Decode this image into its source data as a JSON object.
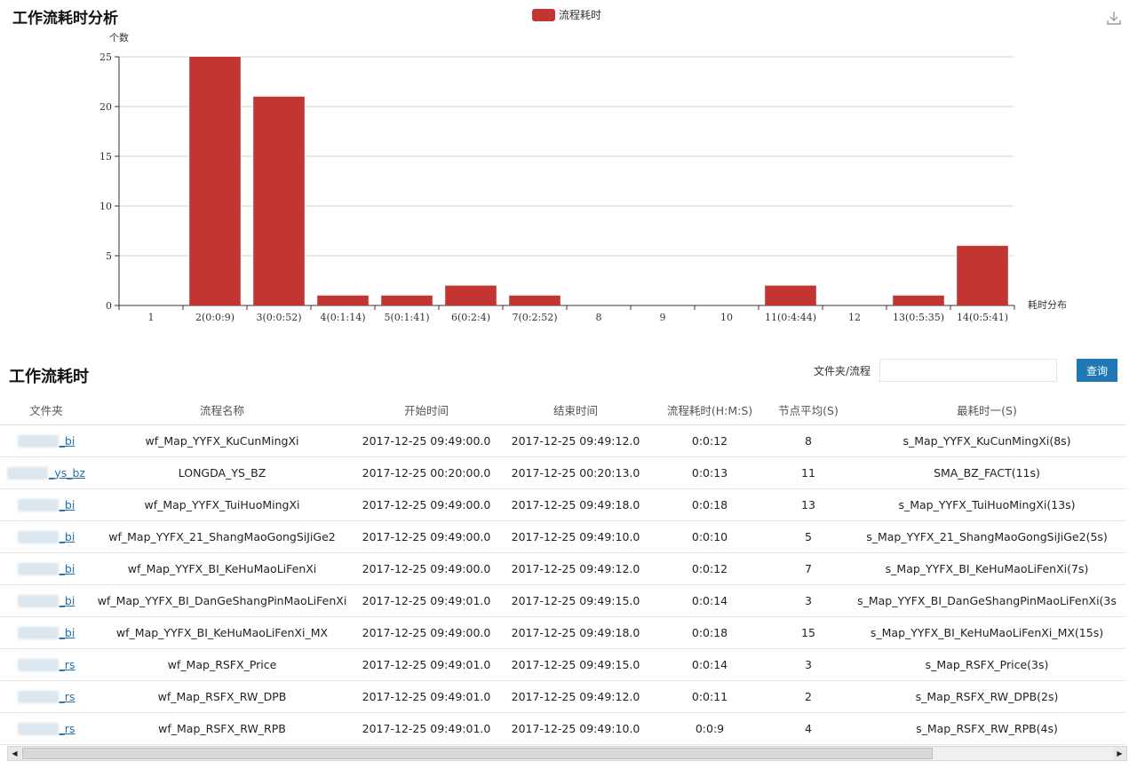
{
  "chart_section": {
    "title": "工作流耗时分析"
  },
  "download_icon": "download-icon",
  "chart_data": {
    "type": "bar",
    "categories": [
      "1",
      "2(0:0:9)",
      "3(0:0:52)",
      "4(0:1:14)",
      "5(0:1:41)",
      "6(0:2:4)",
      "7(0:2:52)",
      "8",
      "9",
      "10",
      "11(0:4:44)",
      "12",
      "13(0:5:35)",
      "14(0:5:41)"
    ],
    "series": [
      {
        "name": "流程耗时",
        "values": [
          0,
          25,
          21,
          1,
          1,
          2,
          1,
          0,
          0,
          0,
          2,
          0,
          1,
          6
        ]
      }
    ],
    "ylabel": "个数",
    "xlabel": "耗时分布",
    "ylim": [
      0,
      25
    ],
    "yticks": [
      0,
      5,
      10,
      15,
      20,
      25
    ],
    "grid": true,
    "legend_position": "top-center",
    "bar_color": "#c23531"
  },
  "table_section": {
    "title": "工作流耗时",
    "search_label": "文件夹/流程",
    "search_value": "",
    "search_button": "查询"
  },
  "table": {
    "columns": [
      "文件夹",
      "流程名称",
      "开始时间",
      "结束时间",
      "流程耗时(H:M:S)",
      "节点平均(S)",
      "最耗时一(S)"
    ],
    "rows": [
      [
        "_bi",
        "wf_Map_YYFX_KuCunMingXi",
        "2017-12-25 09:49:00.0",
        "2017-12-25 09:49:12.0",
        "0:0:12",
        "8",
        "s_Map_YYFX_KuCunMingXi(8s)"
      ],
      [
        "_ys_bz",
        "LONGDA_YS_BZ",
        "2017-12-25 00:20:00.0",
        "2017-12-25 00:20:13.0",
        "0:0:13",
        "11",
        "SMA_BZ_FACT(11s)"
      ],
      [
        "_bi",
        "wf_Map_YYFX_TuiHuoMingXi",
        "2017-12-25 09:49:00.0",
        "2017-12-25 09:49:18.0",
        "0:0:18",
        "13",
        "s_Map_YYFX_TuiHuoMingXi(13s)"
      ],
      [
        "_bi",
        "wf_Map_YYFX_21_ShangMaoGongSiJiGe2",
        "2017-12-25 09:49:00.0",
        "2017-12-25 09:49:10.0",
        "0:0:10",
        "5",
        "s_Map_YYFX_21_ShangMaoGongSiJiGe2(5s)"
      ],
      [
        "_bi",
        "wf_Map_YYFX_BI_KeHuMaoLiFenXi",
        "2017-12-25 09:49:00.0",
        "2017-12-25 09:49:12.0",
        "0:0:12",
        "7",
        "s_Map_YYFX_BI_KeHuMaoLiFenXi(7s)"
      ],
      [
        "_bi",
        "wf_Map_YYFX_BI_DanGeShangPinMaoLiFenXi",
        "2017-12-25 09:49:01.0",
        "2017-12-25 09:49:15.0",
        "0:0:14",
        "3",
        "s_Map_YYFX_BI_DanGeShangPinMaoLiFenXi(3s"
      ],
      [
        "_bi",
        "wf_Map_YYFX_BI_KeHuMaoLiFenXi_MX",
        "2017-12-25 09:49:00.0",
        "2017-12-25 09:49:18.0",
        "0:0:18",
        "15",
        "s_Map_YYFX_BI_KeHuMaoLiFenXi_MX(15s)"
      ],
      [
        "_rs",
        "wf_Map_RSFX_Price",
        "2017-12-25 09:49:01.0",
        "2017-12-25 09:49:15.0",
        "0:0:14",
        "3",
        "s_Map_RSFX_Price(3s)"
      ],
      [
        "_rs",
        "wf_Map_RSFX_RW_DPB",
        "2017-12-25 09:49:01.0",
        "2017-12-25 09:49:12.0",
        "0:0:11",
        "2",
        "s_Map_RSFX_RW_DPB(2s)"
      ],
      [
        "_rs",
        "wf_Map_RSFX_RW_RPB",
        "2017-12-25 09:49:01.0",
        "2017-12-25 09:49:10.0",
        "0:0:9",
        "4",
        "s_Map_RSFX_RW_RPB(4s)"
      ]
    ]
  }
}
